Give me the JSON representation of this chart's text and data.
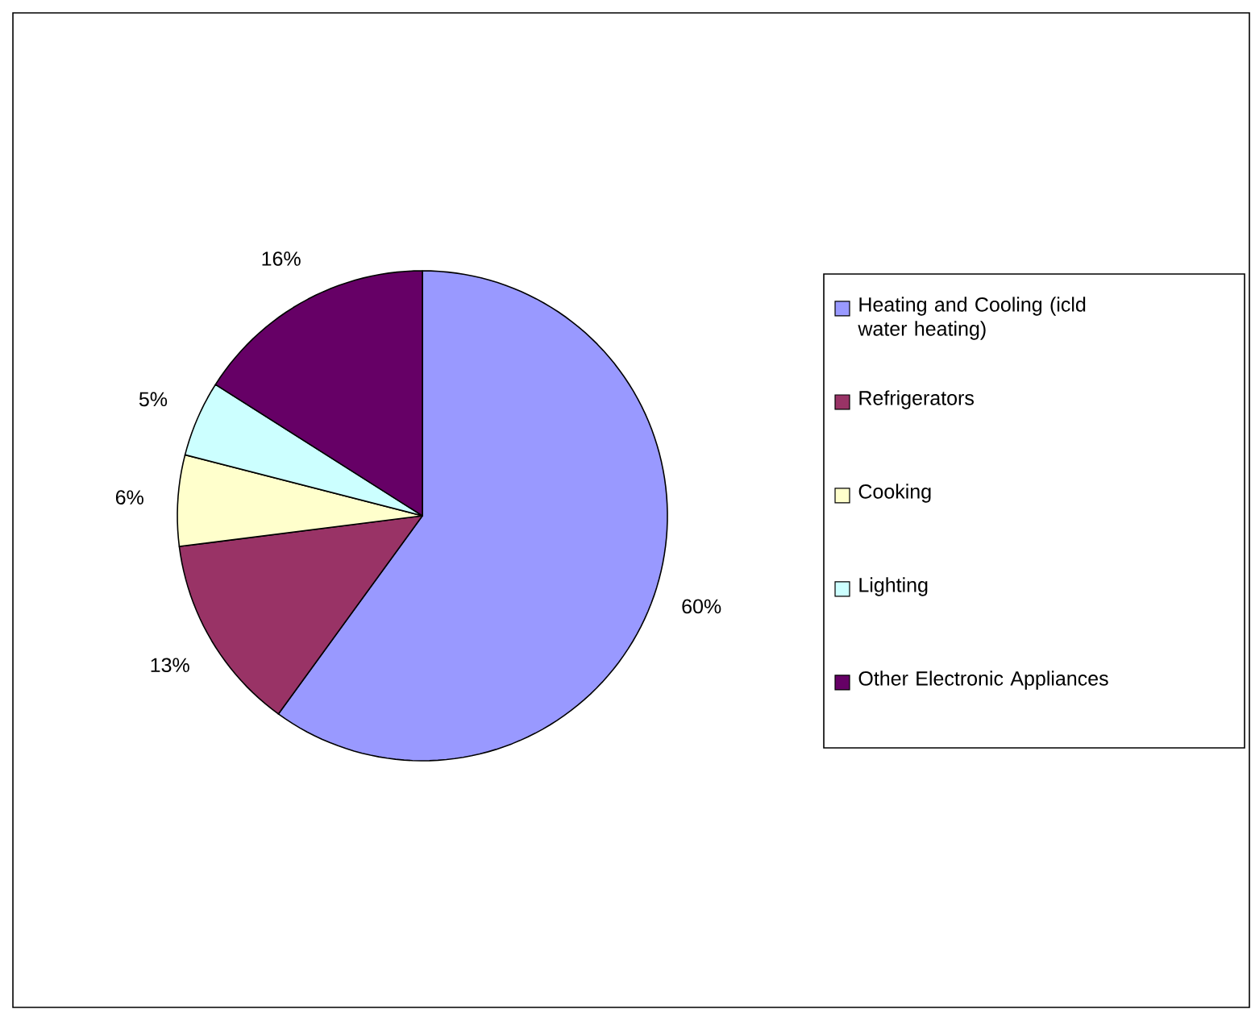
{
  "chart_data": {
    "type": "pie",
    "categories": [
      "Heating and Cooling (icld water heating)",
      "Refrigerators",
      "Cooking",
      "Lighting",
      "Other Electronic Appliances"
    ],
    "values": [
      60,
      13,
      6,
      5,
      16
    ],
    "colors": [
      "#9999ff",
      "#993366",
      "#ffffcc",
      "#ccffff",
      "#660066"
    ],
    "value_labels": [
      "60%",
      "13%",
      "6%",
      "5%",
      "16%"
    ],
    "legend": "right"
  }
}
